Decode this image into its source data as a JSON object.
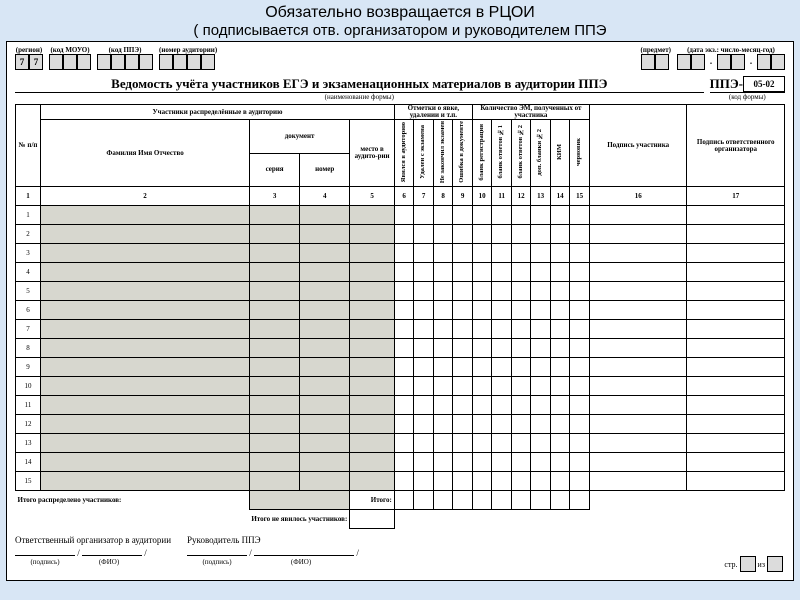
{
  "banner_top": "Обязательно возвращается в РЦОИ",
  "banner_sub": "( подписывается отв. организатором и руководителем ППЭ",
  "top_fields": {
    "region_label": "(регион)",
    "region_values": [
      "7",
      "7"
    ],
    "mouo_label": "(код МОУО)",
    "ppe_label": "(код ППЭ)",
    "aud_label": "(номер аудитории)",
    "subject_label": "(предмет)",
    "date_label": "(дата экз.: число-месяц-год)"
  },
  "title": "Ведомость учёта участников ЕГЭ и экзаменационных материалов в аудитории ППЭ",
  "title_note": "(наименование формы)",
  "form_code_prefix": "ППЭ-",
  "form_code": "05-02",
  "form_code_note": "(код формы)",
  "head": {
    "participants": "Участники распределённые в аудиторию",
    "marks": "Отметки о явке, удалении и т.п.",
    "em_count": "Количество ЭМ, полученных от участника",
    "nn": "№ п/п",
    "fio": "Фамилия Имя Отчество",
    "doc": "документ",
    "seat": "место в аудито-рии",
    "series": "серия",
    "number": "номер",
    "c6": "Явился в аудиторию",
    "c7": "Удален с экзамена",
    "c8": "Не закончил экзамен",
    "c9": "Ошибка в документе",
    "c10": "бланк регистрации",
    "c11": "бланк ответов №1",
    "c12": "бланк ответов №2",
    "c13": "доп. бланки №2",
    "c14": "КИМ",
    "c15": "черновик",
    "sign": "Подпись участника",
    "org_sign": "Подпись ответственного организатора"
  },
  "colnums": [
    "1",
    "2",
    "3",
    "4",
    "5",
    "6",
    "7",
    "8",
    "9",
    "10",
    "11",
    "12",
    "13",
    "14",
    "15",
    "16",
    "17"
  ],
  "rows": 15,
  "totals": {
    "row1_left": "Итого распределено участников:",
    "row1_right": "Итого:",
    "row2": "Итого не явилось участников:"
  },
  "footer": {
    "org": "Ответственный организатор в аудитории",
    "head": "Руководитель ППЭ",
    "sign": "(подпись)",
    "fio": "(ФИО)",
    "page": "стр.",
    "of": "из"
  }
}
